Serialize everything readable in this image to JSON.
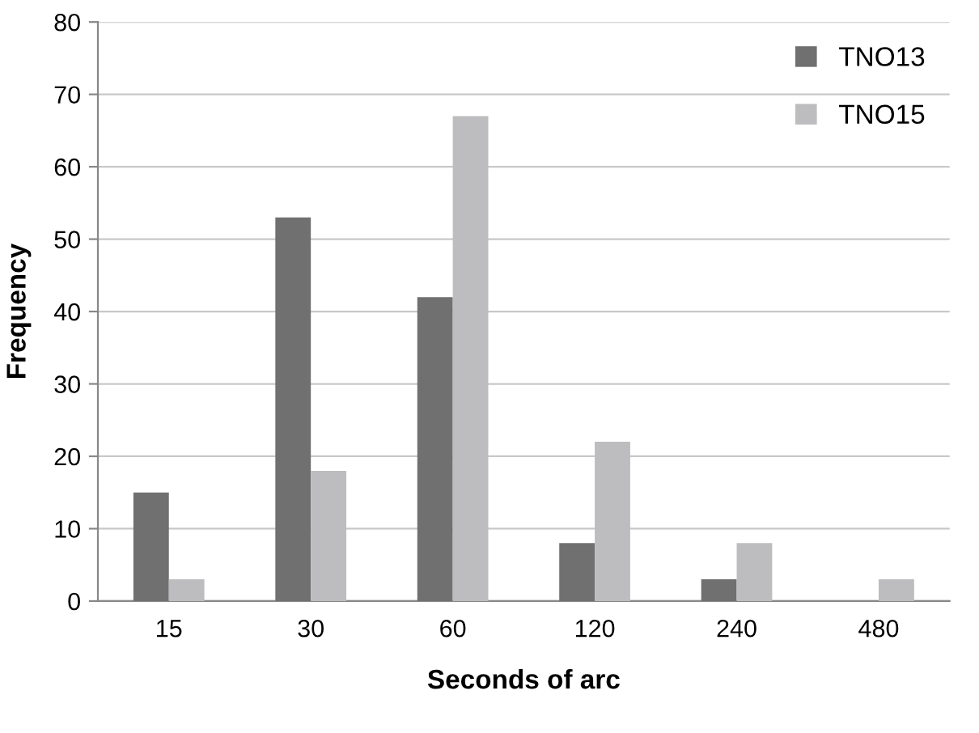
{
  "chart_data": {
    "type": "bar",
    "xlabel": "Seconds of arc",
    "ylabel": "Frequency",
    "categories": [
      "15",
      "30",
      "60",
      "120",
      "240",
      "480"
    ],
    "series": [
      {
        "name": "TNO13",
        "color": "#707070",
        "values": [
          15,
          53,
          42,
          8,
          3,
          0
        ]
      },
      {
        "name": "TNO15",
        "color": "#bdbdbf",
        "values": [
          3,
          18,
          67,
          22,
          8,
          3
        ]
      }
    ],
    "ylim": [
      0,
      80
    ],
    "yticks": [
      0,
      10,
      20,
      30,
      40,
      50,
      60,
      70,
      80
    ],
    "grid": "y",
    "legend": "top right"
  }
}
